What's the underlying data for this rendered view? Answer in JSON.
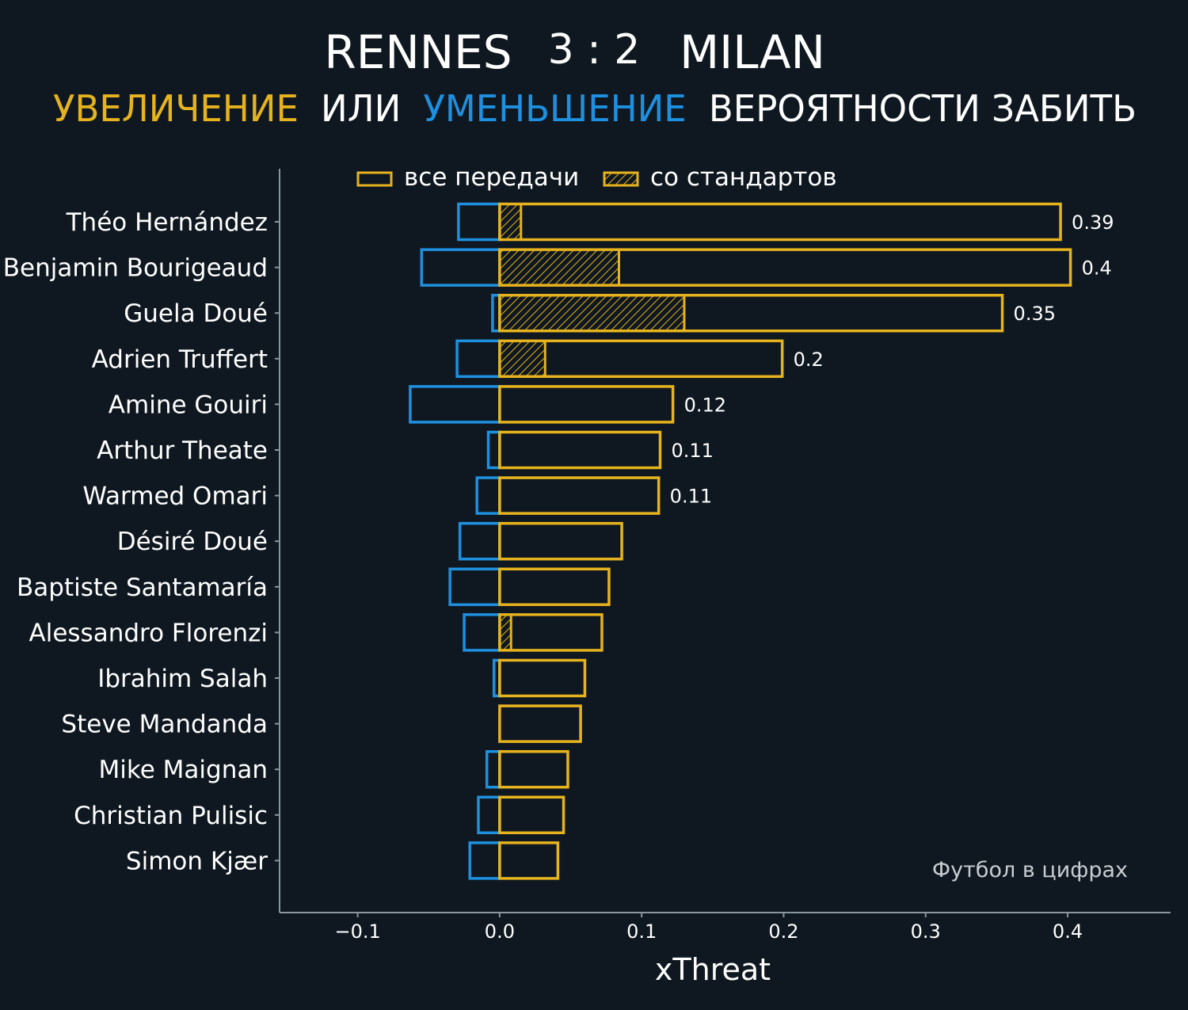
{
  "title": {
    "home_team": "RENNES",
    "score": "3 : 2",
    "away_team": "MILAN"
  },
  "subtitle": {
    "part_increase": "УВЕЛИЧЕНИЕ",
    "part_or": "ИЛИ",
    "part_decrease": "УМЕНЬШЕНИЕ",
    "part_rest": "ВЕРОЯТНОСТИ ЗАБИТЬ"
  },
  "legend": {
    "all_passes": "все передачи",
    "set_pieces": "со стандартов"
  },
  "watermark": "Футбол в цифрах",
  "colors": {
    "background": "#0f1820",
    "increase": "#e6b31e",
    "decrease": "#1e90e0",
    "text": "#ffffff",
    "axis": "#8a969e",
    "watermark": "#c8cdd2"
  },
  "chart_data": {
    "type": "bar",
    "orientation": "horizontal",
    "xlabel": "xThreat",
    "xlim": [
      -0.155,
      0.4725
    ],
    "xticks": [
      -0.1,
      0.0,
      0.1,
      0.2,
      0.3,
      0.4
    ],
    "xtick_labels": [
      "−0.1",
      "0.0",
      "0.1",
      "0.2",
      "0.3",
      "0.4"
    ],
    "categories": [
      "Théo Hernández",
      "Benjamin Bourigeaud",
      "Guela Doué",
      "Adrien Truffert",
      "Amine Gouiri",
      "Arthur Theate",
      "Warmed Omari",
      "Désiré Doué",
      "Baptiste Santamaría",
      "Alessandro Florenzi",
      "Ibrahim Salah",
      "Steve Mandanda",
      "Mike Maignan",
      "Christian Pulisic",
      "Simon Kjær"
    ],
    "series": [
      {
        "name": "все передачи",
        "values": [
          0.395,
          0.402,
          0.354,
          0.199,
          0.122,
          0.113,
          0.112,
          0.086,
          0.077,
          0.072,
          0.06,
          0.057,
          0.048,
          0.045,
          0.041
        ]
      },
      {
        "name": "со стандартов",
        "values": [
          0.015,
          0.084,
          0.13,
          0.032,
          0,
          0,
          0,
          0,
          0,
          0.008,
          0,
          0,
          0,
          0,
          0
        ]
      },
      {
        "values": [
          -0.029,
          -0.055,
          -0.005,
          -0.03,
          -0.063,
          -0.008,
          -0.016,
          -0.028,
          -0.035,
          -0.025,
          -0.004,
          0,
          -0.009,
          -0.015,
          -0.021
        ]
      }
    ],
    "value_labels": [
      "0.39",
      "0.4",
      "0.35",
      "0.2",
      "0.12",
      "0.11",
      "0.11",
      "",
      "",
      "",
      "",
      "",
      "",
      "",
      ""
    ]
  }
}
